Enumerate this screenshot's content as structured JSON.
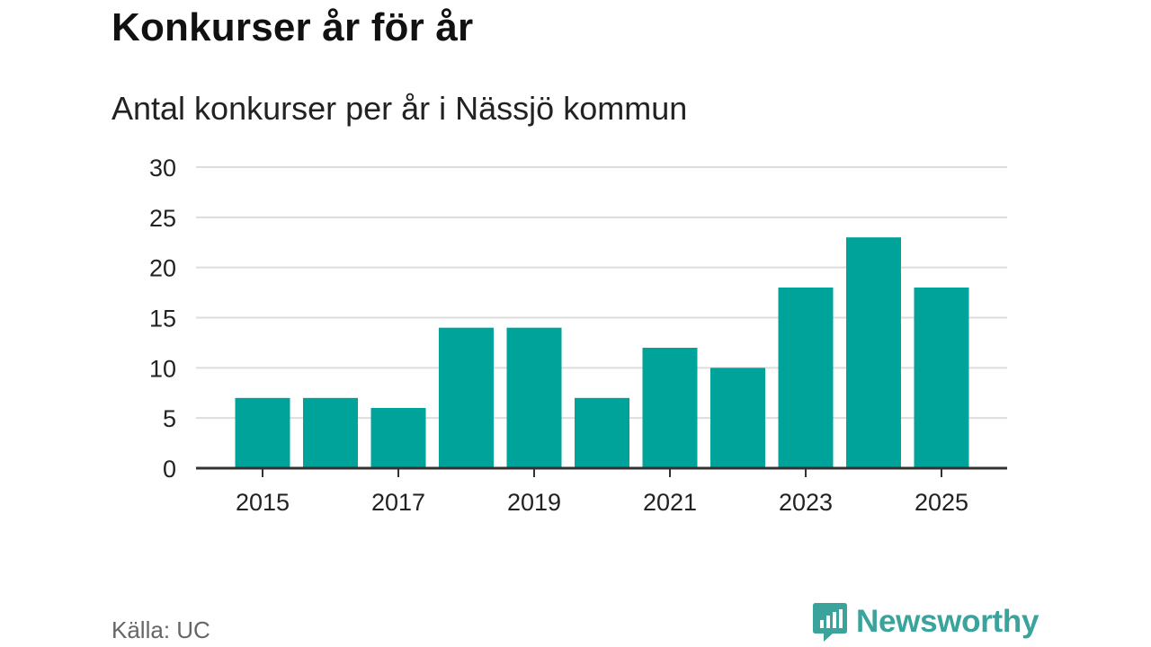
{
  "title": "Konkurser år för år",
  "subtitle": "Antal konkurser per år i Nässjö kommun",
  "source": "Källa: UC",
  "brand": {
    "name": "Newsworthy",
    "icon": "newsworthy-logo-icon",
    "color": "#3aa39b"
  },
  "colors": {
    "bar": "#00a39a",
    "grid": "#dddddd",
    "axis": "#333333"
  },
  "chart_data": {
    "type": "bar",
    "categories": [
      "2015",
      "2016",
      "2017",
      "2018",
      "2019",
      "2020",
      "2021",
      "2022",
      "2023",
      "2024",
      "2025"
    ],
    "values": [
      7,
      7,
      6,
      14,
      14,
      7,
      12,
      10,
      18,
      23,
      18
    ],
    "xtick_labels": [
      "2015",
      "2017",
      "2019",
      "2021",
      "2023",
      "2025"
    ],
    "yticks": [
      0,
      5,
      10,
      15,
      20,
      25,
      30
    ],
    "ylim": [
      0,
      30
    ],
    "title": "Konkurser år för år",
    "subtitle": "Antal konkurser per år i Nässjö kommun",
    "xlabel": "",
    "ylabel": "",
    "grid": true
  }
}
